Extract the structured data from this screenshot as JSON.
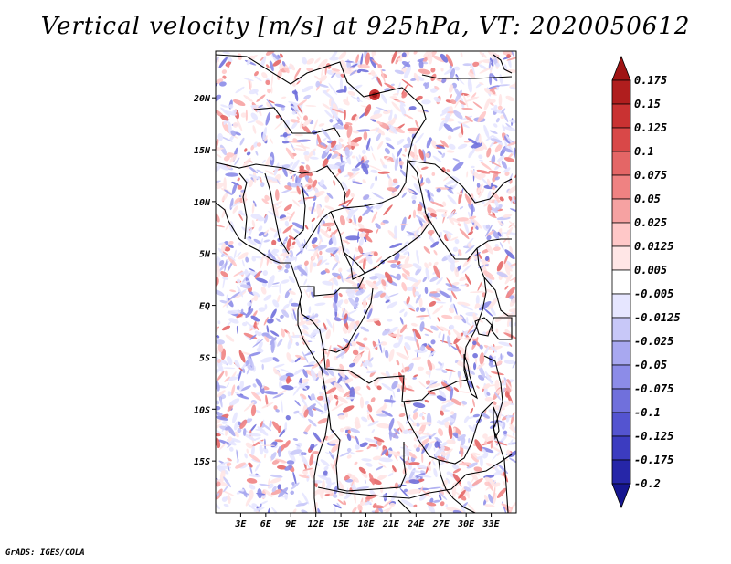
{
  "title": "Vertical velocity [m/s] at 925hPa, VT: 2020050612",
  "credit": "GrADS: IGES/COLA",
  "colors": {
    "background": "#ffffff",
    "positive": [
      "#ffe6e6",
      "#ffc8c8",
      "#f6a2a2",
      "#ef8282",
      "#e46666",
      "#d94848",
      "#c93232",
      "#b01e1e",
      "#a01414"
    ],
    "negative": [
      "#e6e6ff",
      "#c8c8f8",
      "#a8a8f0",
      "#8c8ce8",
      "#7070dc",
      "#5454d0",
      "#3c3cc0",
      "#2626a8",
      "#161690"
    ]
  },
  "map": {
    "lon_range": [
      0,
      36
    ],
    "lat_range": [
      -20,
      24.5
    ],
    "x_ticks": [
      "3E",
      "6E",
      "9E",
      "12E",
      "15E",
      "18E",
      "21E",
      "24E",
      "27E",
      "30E",
      "33E"
    ],
    "x_tick_values": [
      3,
      6,
      9,
      12,
      15,
      18,
      21,
      24,
      27,
      30,
      33
    ],
    "y_ticks": [
      "20N",
      "15N",
      "10N",
      "5N",
      "EQ",
      "5S",
      "10S",
      "15S"
    ],
    "y_tick_values": [
      20,
      15,
      10,
      5,
      0,
      -5,
      -10,
      -15
    ]
  },
  "colorbar": {
    "levels": [
      "0.175",
      "0.15",
      "0.125",
      "0.1",
      "0.075",
      "0.05",
      "0.025",
      "0.0125",
      "0.005",
      "-0.005",
      "-0.0125",
      "-0.025",
      "-0.05",
      "-0.075",
      "-0.1",
      "-0.125",
      "-0.175",
      "-0.2"
    ],
    "colors": [
      "#a01414",
      "#b01e1e",
      "#c93232",
      "#d94848",
      "#e46666",
      "#ef8282",
      "#f6a2a2",
      "#ffc8c8",
      "#ffe6e6",
      "#ffffff",
      "#e6e6ff",
      "#c8c8f8",
      "#a8a8f0",
      "#8c8ce8",
      "#7070dc",
      "#5454d0",
      "#3c3cc0",
      "#2626a8",
      "#161690"
    ]
  }
}
